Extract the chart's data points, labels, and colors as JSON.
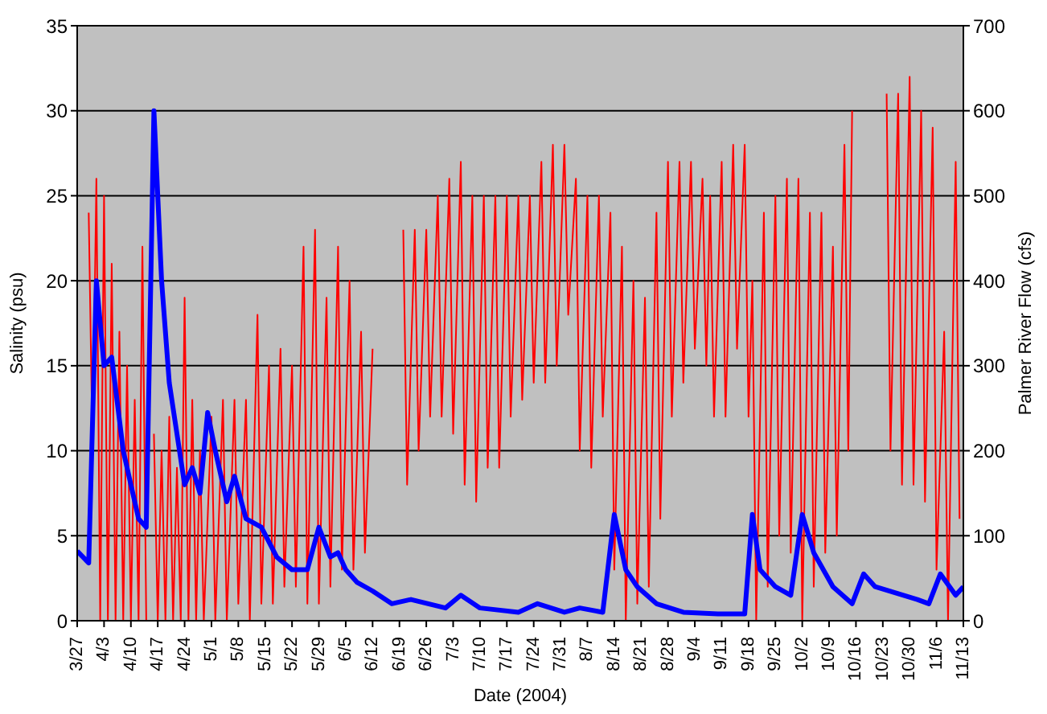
{
  "chart_data": {
    "type": "line",
    "xlabel": "Date (2004)",
    "ylabel": "Salinity (psu)",
    "y2label": "Palmer River Flow (cfs)",
    "xlim": [
      "2004-03-27",
      "2004-11-13"
    ],
    "xticks": [
      {
        "value": "2004-03-27",
        "label": "3/27"
      },
      {
        "value": "2004-04-03",
        "label": "4/3"
      },
      {
        "value": "2004-04-10",
        "label": "4/10"
      },
      {
        "value": "2004-04-17",
        "label": "4/17"
      },
      {
        "value": "2004-04-24",
        "label": "4/24"
      },
      {
        "value": "2004-05-01",
        "label": "5/1"
      },
      {
        "value": "2004-05-08",
        "label": "5/8"
      },
      {
        "value": "2004-05-15",
        "label": "5/15"
      },
      {
        "value": "2004-05-22",
        "label": "5/22"
      },
      {
        "value": "2004-05-29",
        "label": "5/29"
      },
      {
        "value": "2004-06-05",
        "label": "6/5"
      },
      {
        "value": "2004-06-12",
        "label": "6/12"
      },
      {
        "value": "2004-06-19",
        "label": "6/19"
      },
      {
        "value": "2004-06-26",
        "label": "6/26"
      },
      {
        "value": "2004-07-03",
        "label": "7/3"
      },
      {
        "value": "2004-07-10",
        "label": "7/10"
      },
      {
        "value": "2004-07-17",
        "label": "7/17"
      },
      {
        "value": "2004-07-24",
        "label": "7/24"
      },
      {
        "value": "2004-07-31",
        "label": "7/31"
      },
      {
        "value": "2004-08-07",
        "label": "8/7"
      },
      {
        "value": "2004-08-14",
        "label": "8/14"
      },
      {
        "value": "2004-08-21",
        "label": "8/21"
      },
      {
        "value": "2004-08-28",
        "label": "8/28"
      },
      {
        "value": "2004-09-04",
        "label": "9/4"
      },
      {
        "value": "2004-09-11",
        "label": "9/11"
      },
      {
        "value": "2004-09-18",
        "label": "9/18"
      },
      {
        "value": "2004-09-25",
        "label": "9/25"
      },
      {
        "value": "2004-10-02",
        "label": "10/2"
      },
      {
        "value": "2004-10-09",
        "label": "10/9"
      },
      {
        "value": "2004-10-16",
        "label": "10/16"
      },
      {
        "value": "2004-10-23",
        "label": "10/23"
      },
      {
        "value": "2004-10-30",
        "label": "10/30"
      },
      {
        "value": "2004-11-06",
        "label": "11/6"
      },
      {
        "value": "2004-11-13",
        "label": "11/13"
      }
    ],
    "ylim": [
      0,
      35
    ],
    "yticks": [
      0,
      5,
      10,
      15,
      20,
      25,
      30,
      35
    ],
    "y2lim": [
      0,
      700
    ],
    "y2ticks": [
      0,
      100,
      200,
      300,
      400,
      500,
      600,
      700
    ],
    "grid": "y",
    "marker": "none",
    "line_style": "solid",
    "series": [
      {
        "color": "#ff0000",
        "x": [
          "2004-03-30",
          "2004-03-31",
          "2004-04-01",
          "2004-04-02",
          "2004-04-03",
          "2004-04-04",
          "2004-04-05",
          "2004-04-06",
          "2004-04-07",
          "2004-04-08",
          "2004-04-09",
          "2004-04-10",
          "2004-04-11",
          "2004-04-12",
          "2004-04-13",
          "2004-04-14",
          "2004-04-15",
          "2004-04-16",
          "2004-04-17",
          "2004-04-18",
          "2004-04-19",
          "2004-04-20",
          "2004-04-21",
          "2004-04-22",
          "2004-04-23",
          "2004-04-24",
          "2004-04-25",
          "2004-04-26",
          "2004-04-27",
          "2004-04-28",
          "2004-04-29",
          "2004-05-01",
          "2004-05-02",
          "2004-05-04",
          "2004-05-05",
          "2004-05-07",
          "2004-05-08",
          "2004-05-10",
          "2004-05-11",
          "2004-05-13",
          "2004-05-14",
          "2004-05-16",
          "2004-05-17",
          "2004-05-19",
          "2004-05-20",
          "2004-05-22",
          "2004-05-23",
          "2004-05-25",
          "2004-05-26",
          "2004-05-28",
          "2004-05-29",
          "2004-05-31",
          "2004-06-01",
          "2004-06-03",
          "2004-06-04",
          "2004-06-06",
          "2004-06-07",
          "2004-06-09",
          "2004-06-10",
          "2004-06-12",
          "2004-06-13",
          "2004-06-20",
          "2004-06-21",
          "2004-06-23",
          "2004-06-24",
          "2004-06-26",
          "2004-06-27",
          "2004-06-29",
          "2004-06-30",
          "2004-07-02",
          "2004-07-03",
          "2004-07-05",
          "2004-07-06",
          "2004-07-08",
          "2004-07-09",
          "2004-07-11",
          "2004-07-12",
          "2004-07-14",
          "2004-07-15",
          "2004-07-17",
          "2004-07-18",
          "2004-07-20",
          "2004-07-21",
          "2004-07-23",
          "2004-07-24",
          "2004-07-26",
          "2004-07-27",
          "2004-07-29",
          "2004-07-30",
          "2004-08-01",
          "2004-08-02",
          "2004-08-04",
          "2004-08-05",
          "2004-08-07",
          "2004-08-08",
          "2004-08-10",
          "2004-08-11",
          "2004-08-13",
          "2004-08-14",
          "2004-08-16",
          "2004-08-17",
          "2004-08-19",
          "2004-08-20",
          "2004-08-22",
          "2004-08-23",
          "2004-08-25",
          "2004-08-26",
          "2004-08-28",
          "2004-08-29",
          "2004-08-31",
          "2004-09-01",
          "2004-09-03",
          "2004-09-04",
          "2004-09-06",
          "2004-09-07",
          "2004-09-08",
          "2004-09-09",
          "2004-09-11",
          "2004-09-12",
          "2004-09-14",
          "2004-09-15",
          "2004-09-17",
          "2004-09-18",
          "2004-09-19",
          "2004-09-20",
          "2004-09-22",
          "2004-09-23",
          "2004-09-25",
          "2004-09-26",
          "2004-09-28",
          "2004-09-29",
          "2004-10-01",
          "2004-10-02",
          "2004-10-04",
          "2004-10-05",
          "2004-10-07",
          "2004-10-08",
          "2004-10-10",
          "2004-10-11",
          "2004-10-13",
          "2004-10-14",
          "2004-10-15",
          "2004-10-16",
          "2004-10-24",
          "2004-10-25",
          "2004-10-27",
          "2004-10-28",
          "2004-10-30",
          "2004-10-31",
          "2004-11-02",
          "2004-11-03",
          "2004-11-05",
          "2004-11-06",
          "2004-11-08",
          "2004-11-09",
          "2004-11-11",
          "2004-11-12"
        ],
        "values": [
          24,
          10,
          26,
          0,
          25,
          0,
          21,
          0,
          17,
          0,
          15,
          0,
          13,
          0,
          22,
          0,
          null,
          11,
          0,
          10,
          0,
          12,
          0,
          9,
          0,
          19,
          0,
          13,
          0,
          10,
          0,
          12,
          0,
          13,
          0,
          13,
          1,
          13,
          0,
          18,
          1,
          15,
          1,
          16,
          2,
          15,
          2,
          22,
          1,
          23,
          1,
          19,
          2,
          22,
          3,
          20,
          3,
          17,
          4,
          16,
          null,
          23,
          8,
          23,
          10,
          23,
          12,
          25,
          12,
          26,
          11,
          27,
          8,
          25,
          7,
          25,
          9,
          25,
          9,
          25,
          12,
          25,
          13,
          25,
          14,
          27,
          14,
          28,
          15,
          28,
          18,
          26,
          10,
          25,
          9,
          25,
          12,
          24,
          3,
          22,
          0,
          20,
          1,
          19,
          2,
          24,
          6,
          27,
          12,
          27,
          14,
          27,
          16,
          26,
          15,
          25,
          12,
          27,
          12,
          28,
          16,
          28,
          12,
          20,
          0,
          24,
          2,
          25,
          5,
          26,
          4,
          26,
          0,
          24,
          2,
          24,
          4,
          22,
          5,
          28,
          10,
          30,
          null,
          31,
          10,
          31,
          8,
          32,
          8,
          30,
          7,
          29,
          3,
          17,
          0,
          27,
          6
        ]
      },
      {
        "color": "#0000ff",
        "axis": "y2",
        "x": [
          "2004-03-27",
          "2004-03-30",
          "2004-04-01",
          "2004-04-03",
          "2004-04-05",
          "2004-04-08",
          "2004-04-12",
          "2004-04-14",
          "2004-04-16",
          "2004-04-18",
          "2004-04-20",
          "2004-04-24",
          "2004-04-26",
          "2004-04-28",
          "2004-04-30",
          "2004-05-02",
          "2004-05-05",
          "2004-05-07",
          "2004-05-10",
          "2004-05-14",
          "2004-05-18",
          "2004-05-22",
          "2004-05-26",
          "2004-05-29",
          "2004-06-01",
          "2004-06-03",
          "2004-06-05",
          "2004-06-08",
          "2004-06-12",
          "2004-06-17",
          "2004-06-22",
          "2004-07-01",
          "2004-07-05",
          "2004-07-10",
          "2004-07-20",
          "2004-07-25",
          "2004-08-01",
          "2004-08-05",
          "2004-08-11",
          "2004-08-14",
          "2004-08-17",
          "2004-08-20",
          "2004-08-25",
          "2004-09-01",
          "2004-09-10",
          "2004-09-17",
          "2004-09-19",
          "2004-09-21",
          "2004-09-25",
          "2004-09-29",
          "2004-10-02",
          "2004-10-05",
          "2004-10-10",
          "2004-10-15",
          "2004-10-18",
          "2004-10-21",
          "2004-11-01",
          "2004-11-04",
          "2004-11-07",
          "2004-11-11",
          "2004-11-13"
        ],
        "values": [
          82,
          68,
          400,
          300,
          310,
          200,
          120,
          110,
          600,
          400,
          280,
          160,
          180,
          150,
          245,
          200,
          140,
          170,
          120,
          110,
          75,
          60,
          60,
          110,
          75,
          80,
          60,
          45,
          35,
          20,
          25,
          15,
          30,
          15,
          10,
          20,
          10,
          15,
          10,
          125,
          60,
          40,
          20,
          10,
          8,
          8,
          125,
          60,
          40,
          30,
          125,
          80,
          40,
          20,
          55,
          40,
          25,
          20,
          55,
          30,
          40
        ]
      }
    ]
  }
}
